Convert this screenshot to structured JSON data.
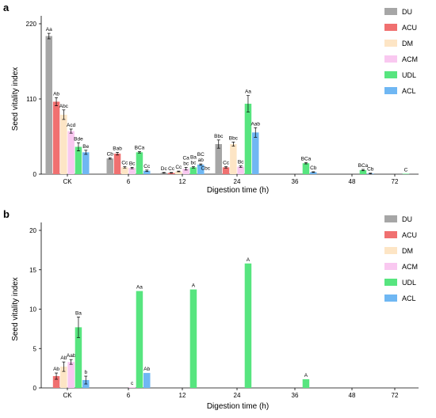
{
  "chart_data": [
    {
      "type": "bar",
      "panel": "a",
      "ylabel": "Seed vitality index",
      "xlabel": "Digestion time (h)",
      "ylim": [
        0,
        220
      ],
      "yticks": [
        0,
        110,
        220
      ],
      "categories": [
        "CK",
        "6",
        "12",
        "24",
        "36",
        "48",
        "72"
      ],
      "legend_position": "top-right",
      "series": [
        {
          "name": "DU",
          "color": "#a6a6a6",
          "values": [
            202,
            23,
            2,
            44,
            null,
            null,
            null
          ],
          "errors": [
            4,
            1,
            0.5,
            6,
            null,
            null,
            null
          ],
          "labels": [
            "Aa",
            "Cb",
            "Dc",
            "Bbc",
            "",
            "",
            ""
          ]
        },
        {
          "name": "ACU",
          "color": "#f07070",
          "values": [
            106,
            30,
            2,
            10,
            null,
            null,
            null
          ],
          "errors": [
            6,
            2,
            0.5,
            1,
            null,
            null,
            null
          ],
          "labels": [
            "Ab",
            "Bab",
            "Cc",
            "Cc",
            "",
            "",
            ""
          ]
        },
        {
          "name": "DM",
          "color": "#fde5c5",
          "values": [
            87,
            10,
            4,
            44,
            null,
            null,
            null
          ],
          "errors": [
            7,
            1,
            0.5,
            3,
            null,
            null,
            null
          ],
          "labels": [
            "Abc",
            "Cc",
            "Cc",
            "Bbc",
            "",
            "",
            ""
          ]
        },
        {
          "name": "ACM",
          "color": "#f9c8f0",
          "values": [
            63,
            9,
            8,
            11,
            null,
            null,
            null
          ],
          "errors": [
            3,
            1,
            2,
            1,
            null,
            null,
            null
          ],
          "labels": [
            "Acd",
            "Bc",
            "Ca bc",
            "Bc",
            "",
            "",
            ""
          ]
        },
        {
          "name": "UDL",
          "color": "#57e57f",
          "values": [
            40,
            32,
            10,
            103,
            16,
            6,
            0.5
          ],
          "errors": [
            6,
            1,
            1,
            12,
            1,
            1,
            null
          ],
          "labels": [
            "Bde",
            "BCa",
            "Ba bc",
            "Aa",
            "BCa",
            "BCa",
            "C"
          ]
        },
        {
          "name": "ACL",
          "color": "#6fb7f3",
          "values": [
            32,
            5,
            14,
            61,
            3,
            1,
            null
          ],
          "errors": [
            3,
            1,
            1,
            7,
            0.5,
            0.5,
            null
          ],
          "labels": [
            "Be",
            "Cc",
            "BC ab",
            "Aab",
            "Cb",
            "Cb",
            ""
          ]
        }
      ],
      "extra_labels": [
        {
          "series": "ACL",
          "category": "12",
          "text": "Cbc",
          "value": 4
        }
      ]
    },
    {
      "type": "bar",
      "panel": "b",
      "ylabel": "Seed vitality index",
      "xlabel": "Digestion time (h)",
      "ylim": [
        0,
        20
      ],
      "yticks": [
        0,
        5,
        10,
        15,
        20
      ],
      "categories": [
        "CK",
        "6",
        "12",
        "24",
        "36",
        "48",
        "72"
      ],
      "legend_position": "top-right",
      "series": [
        {
          "name": "DU",
          "color": "#a6a6a6",
          "values": [
            null,
            null,
            null,
            null,
            null,
            null,
            null
          ],
          "errors": [
            null,
            null,
            null,
            null,
            null,
            null,
            null
          ],
          "labels": [
            "",
            "",
            "",
            "",
            "",
            "",
            ""
          ]
        },
        {
          "name": "ACU",
          "color": "#f07070",
          "values": [
            1.5,
            null,
            null,
            null,
            null,
            null,
            null
          ],
          "errors": [
            0.4,
            null,
            null,
            null,
            null,
            null,
            null
          ],
          "labels": [
            "Ab",
            "",
            "",
            "",
            "",
            "",
            ""
          ]
        },
        {
          "name": "DM",
          "color": "#fde5c5",
          "values": [
            2.7,
            null,
            null,
            null,
            null,
            null,
            null
          ],
          "errors": [
            0.6,
            null,
            null,
            null,
            null,
            null,
            null
          ],
          "labels": [
            "Ab",
            "",
            "",
            "",
            "",
            "",
            ""
          ]
        },
        {
          "name": "ACM",
          "color": "#f9c8f0",
          "values": [
            3.3,
            0.1,
            null,
            null,
            null,
            null,
            null
          ],
          "errors": [
            0.3,
            null,
            null,
            null,
            null,
            null,
            null
          ],
          "labels": [
            "Aab",
            "c",
            "",
            "",
            "",
            "",
            ""
          ]
        },
        {
          "name": "UDL",
          "color": "#57e57f",
          "values": [
            7.7,
            12.3,
            12.5,
            15.8,
            1.1,
            null,
            null
          ],
          "errors": [
            1.3,
            null,
            null,
            null,
            null,
            null,
            null
          ],
          "labels": [
            "Ba",
            "Aa",
            "A",
            "A",
            "A",
            "",
            ""
          ]
        },
        {
          "name": "ACL",
          "color": "#6fb7f3",
          "values": [
            1.0,
            1.9,
            null,
            null,
            null,
            null,
            null
          ],
          "errors": [
            0.5,
            null,
            null,
            null,
            null,
            null,
            null
          ],
          "labels": [
            "b",
            "Ab",
            "",
            "",
            "",
            "",
            ""
          ]
        }
      ]
    }
  ],
  "panel_letters": {
    "a": "a",
    "b": "b"
  }
}
